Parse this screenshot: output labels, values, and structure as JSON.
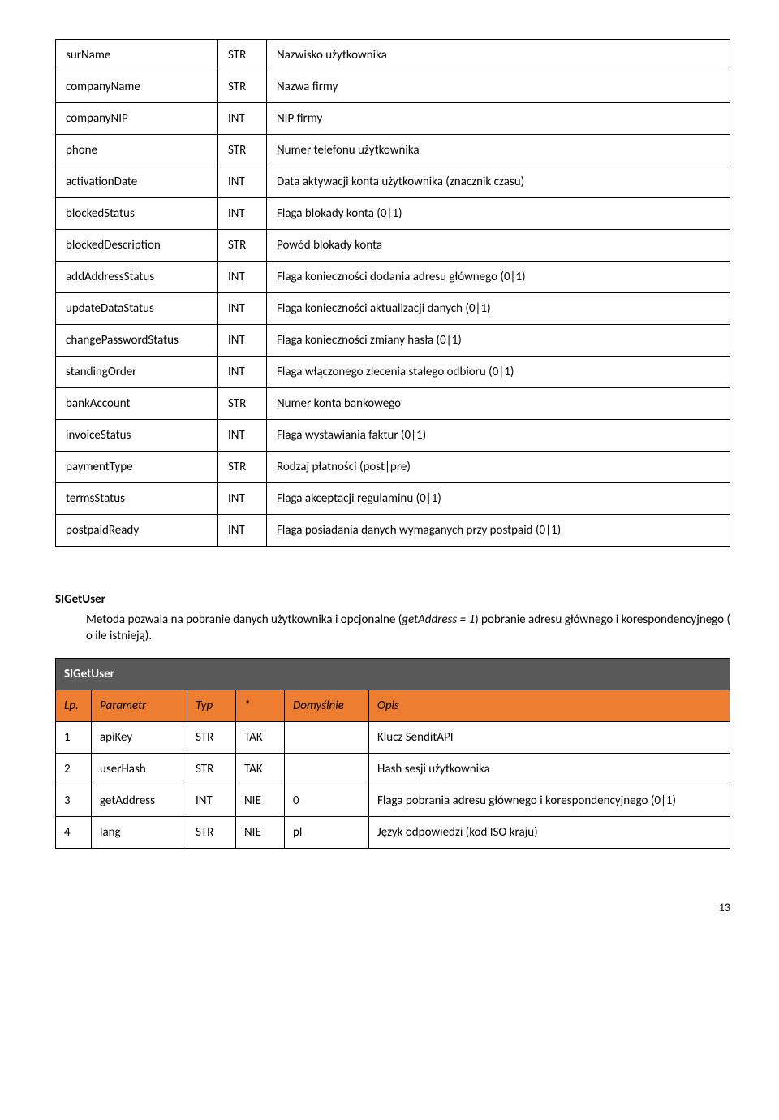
{
  "table1": {
    "rows": [
      {
        "name": "surName",
        "type": "STR",
        "desc": "Nazwisko użytkownika"
      },
      {
        "name": "companyName",
        "type": "STR",
        "desc": "Nazwa firmy"
      },
      {
        "name": "companyNIP",
        "type": "INT",
        "desc": "NIP firmy"
      },
      {
        "name": "phone",
        "type": "STR",
        "desc": "Numer telefonu użytkownika"
      },
      {
        "name": "activationDate",
        "type": "INT",
        "desc": "Data aktywacji konta użytkownika (znacznik czasu)"
      },
      {
        "name": "blockedStatus",
        "type": "INT",
        "desc": "Flaga blokady konta (0|1)"
      },
      {
        "name": "blockedDescription",
        "type": "STR",
        "desc": "Powód blokady konta"
      },
      {
        "name": "addAddressStatus",
        "type": "INT",
        "desc": "Flaga konieczności dodania adresu głównego (0|1)"
      },
      {
        "name": "updateDataStatus",
        "type": "INT",
        "desc": "Flaga konieczności aktualizacji danych (0|1)"
      },
      {
        "name": "changePasswordStatus",
        "type": "INT",
        "desc": "Flaga konieczności zmiany hasła (0|1)"
      },
      {
        "name": "standingOrder",
        "type": "INT",
        "desc": "Flaga włączonego zlecenia stałego odbioru (0|1)"
      },
      {
        "name": "bankAccount",
        "type": "STR",
        "desc": "Numer konta bankowego"
      },
      {
        "name": "invoiceStatus",
        "type": "INT",
        "desc": "Flaga wystawiania faktur (0|1)"
      },
      {
        "name": "paymentType",
        "type": "STR",
        "desc": "Rodzaj płatności (post|pre)"
      },
      {
        "name": "termsStatus",
        "type": "INT",
        "desc": "Flaga akceptacji regulaminu (0|1)"
      },
      {
        "name": "postpaidReady",
        "type": "INT",
        "desc": "Flaga posiadania danych wymaganych przy postpaid (0|1)"
      }
    ]
  },
  "section": {
    "title": "SIGetUser",
    "desc_pre": "Metoda pozwala na pobranie danych użytkownika i opcjonalne (",
    "desc_em": "getAddress = 1",
    "desc_post": ") pobranie adresu głównego i korespondencyjnego ( o ile istnieją)."
  },
  "table2": {
    "title": "SIGetUser",
    "headers": {
      "lp": "Lp.",
      "param": "Parametr",
      "typ": "Typ",
      "req": "*",
      "def": "Domyślnie",
      "opis": "Opis"
    },
    "rows": [
      {
        "lp": "1",
        "param": "apiKey",
        "typ": "STR",
        "req": "TAK",
        "def": "",
        "opis": "Klucz SenditAPI"
      },
      {
        "lp": "2",
        "param": "userHash",
        "typ": "STR",
        "req": "TAK",
        "def": "",
        "opis": "Hash sesji użytkownika"
      },
      {
        "lp": "3",
        "param": "getAddress",
        "typ": "INT",
        "req": "NIE",
        "def": "0",
        "opis": "Flaga pobrania adresu głównego i korespondencyjnego (0|1)"
      },
      {
        "lp": "4",
        "param": "lang",
        "typ": "STR",
        "req": "NIE",
        "def": "pl",
        "opis": "Język odpowiedzi (kod ISO kraju)"
      }
    ]
  },
  "pagenum": "13",
  "colors": {
    "titlebar_bg": "#595959",
    "titlebar_fg": "#ffffff",
    "header_bg": "#ed7d31",
    "border": "#000000"
  }
}
